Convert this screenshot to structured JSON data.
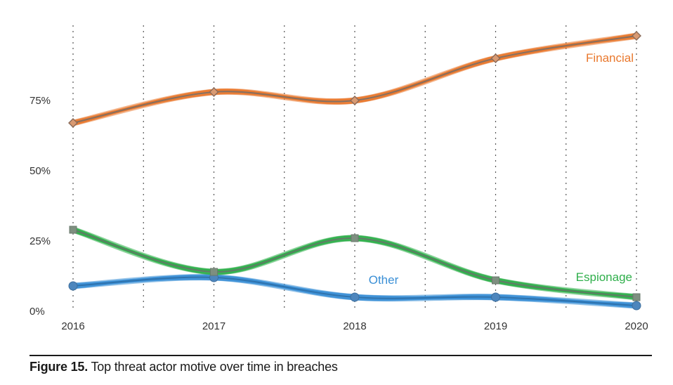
{
  "chart_data": {
    "type": "line",
    "x": [
      "2016",
      "2017",
      "2018",
      "2019",
      "2020"
    ],
    "y_ticks": [
      "0%",
      "25%",
      "50%",
      "75%"
    ],
    "y_tick_values": [
      0,
      25,
      50,
      75
    ],
    "ylim": [
      0,
      100
    ],
    "grid": "vertical dotted",
    "series": [
      {
        "name": "Financial",
        "values": [
          67,
          78,
          75,
          90,
          98
        ],
        "color": "#E9782D",
        "marker": "diamond"
      },
      {
        "name": "Espionage",
        "values": [
          29,
          14,
          26,
          11,
          5
        ],
        "color": "#2FAF4B",
        "marker": "square"
      },
      {
        "name": "Other",
        "values": [
          9,
          12,
          5,
          5,
          2
        ],
        "color": "#3A8FD6",
        "marker": "circle"
      }
    ]
  },
  "caption": {
    "label": "Figure 15.",
    "text": " Top threat actor motive over time in breaches"
  }
}
